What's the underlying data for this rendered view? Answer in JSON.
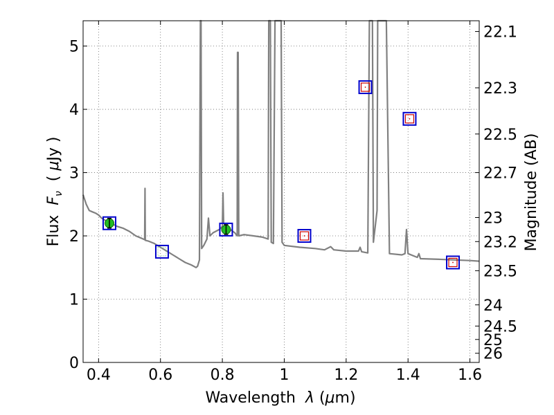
{
  "chart_data": {
    "type": "line",
    "xlabel": "Wavelength  λ (μm)",
    "ylabel_left": "Flux  F_ν  ( μJy )",
    "ylabel_right": "Magnitude (AB)",
    "xlim": [
      0.35,
      1.63
    ],
    "ylim": [
      0,
      5.4
    ],
    "x_ticks": [
      {
        "value": 0.4,
        "label": "0.4"
      },
      {
        "value": 0.6,
        "label": "0.6"
      },
      {
        "value": 0.8,
        "label": "0.8"
      },
      {
        "value": 1.0,
        "label": "1"
      },
      {
        "value": 1.2,
        "label": "1.2"
      },
      {
        "value": 1.4,
        "label": "1.4"
      },
      {
        "value": 1.6,
        "label": "1.6"
      }
    ],
    "y_ticks": [
      {
        "value": 0,
        "label": "0"
      },
      {
        "value": 1,
        "label": "1"
      },
      {
        "value": 2,
        "label": "2"
      },
      {
        "value": 3,
        "label": "3"
      },
      {
        "value": 4,
        "label": "4"
      },
      {
        "value": 5,
        "label": "5"
      }
    ],
    "mag_ticks": [
      {
        "flux": 5.23,
        "label": "22.1"
      },
      {
        "flux": 4.34,
        "label": "22.3"
      },
      {
        "flux": 3.61,
        "label": "22.5"
      },
      {
        "flux": 3.0,
        "label": "22.7"
      },
      {
        "flux": 2.29,
        "label": "23"
      },
      {
        "flux": 1.91,
        "label": "23.2"
      },
      {
        "flux": 1.45,
        "label": "23.5"
      },
      {
        "flux": 0.91,
        "label": "24"
      },
      {
        "flux": 0.575,
        "label": "24.5"
      },
      {
        "flux": 0.363,
        "label": "25"
      },
      {
        "flux": 0.145,
        "label": "26"
      }
    ],
    "grid": true,
    "colors": {
      "spectrum": "#808080",
      "box": "#0000cc",
      "model_marker": "#cc0000",
      "detection_fill": "#22bb22",
      "dotted_marker": "#8fcf8f",
      "grid": "#666666"
    },
    "spectrum": [
      [
        0.35,
        2.65
      ],
      [
        0.36,
        2.5
      ],
      [
        0.37,
        2.4
      ],
      [
        0.38,
        2.38
      ],
      [
        0.39,
        2.36
      ],
      [
        0.4,
        2.33
      ],
      [
        0.41,
        2.28
      ],
      [
        0.42,
        2.25
      ],
      [
        0.43,
        2.22
      ],
      [
        0.44,
        2.2
      ],
      [
        0.46,
        2.15
      ],
      [
        0.48,
        2.12
      ],
      [
        0.5,
        2.07
      ],
      [
        0.52,
        2.0
      ],
      [
        0.54,
        1.96
      ],
      [
        0.549,
        1.94
      ],
      [
        0.55,
        2.75
      ],
      [
        0.551,
        1.93
      ],
      [
        0.56,
        1.92
      ],
      [
        0.58,
        1.88
      ],
      [
        0.6,
        1.82
      ],
      [
        0.62,
        1.76
      ],
      [
        0.64,
        1.7
      ],
      [
        0.66,
        1.64
      ],
      [
        0.68,
        1.58
      ],
      [
        0.7,
        1.54
      ],
      [
        0.715,
        1.5
      ],
      [
        0.72,
        1.52
      ],
      [
        0.726,
        1.62
      ],
      [
        0.728,
        4.2
      ],
      [
        0.729,
        5.4
      ],
      [
        0.731,
        5.4
      ],
      [
        0.733,
        1.8
      ],
      [
        0.74,
        1.85
      ],
      [
        0.75,
        1.95
      ],
      [
        0.755,
        2.28
      ],
      [
        0.76,
        2.0
      ],
      [
        0.77,
        2.05
      ],
      [
        0.79,
        2.1
      ],
      [
        0.8,
        2.15
      ],
      [
        0.802,
        2.68
      ],
      [
        0.804,
        2.2
      ],
      [
        0.82,
        2.12
      ],
      [
        0.84,
        2.05
      ],
      [
        0.848,
        2.0
      ],
      [
        0.849,
        4.9
      ],
      [
        0.851,
        4.9
      ],
      [
        0.853,
        2.0
      ],
      [
        0.87,
        2.02
      ],
      [
        0.9,
        2.0
      ],
      [
        0.93,
        1.98
      ],
      [
        0.948,
        1.95
      ],
      [
        0.95,
        5.4
      ],
      [
        0.955,
        5.4
      ],
      [
        0.958,
        1.9
      ],
      [
        0.965,
        1.88
      ],
      [
        0.97,
        5.4
      ],
      [
        0.99,
        5.4
      ],
      [
        0.993,
        1.9
      ],
      [
        1.0,
        1.85
      ],
      [
        1.05,
        1.82
      ],
      [
        1.1,
        1.8
      ],
      [
        1.13,
        1.78
      ],
      [
        1.15,
        1.83
      ],
      [
        1.16,
        1.78
      ],
      [
        1.2,
        1.76
      ],
      [
        1.24,
        1.76
      ],
      [
        1.245,
        1.82
      ],
      [
        1.25,
        1.75
      ],
      [
        1.27,
        1.73
      ],
      [
        1.275,
        5.4
      ],
      [
        1.285,
        5.4
      ],
      [
        1.288,
        1.9
      ],
      [
        1.3,
        2.4
      ],
      [
        1.302,
        5.4
      ],
      [
        1.33,
        5.4
      ],
      [
        1.34,
        1.72
      ],
      [
        1.38,
        1.7
      ],
      [
        1.39,
        1.72
      ],
      [
        1.395,
        2.1
      ],
      [
        1.4,
        1.72
      ],
      [
        1.43,
        1.66
      ],
      [
        1.435,
        1.72
      ],
      [
        1.44,
        1.64
      ],
      [
        1.5,
        1.63
      ],
      [
        1.55,
        1.62
      ],
      [
        1.6,
        1.61
      ],
      [
        1.63,
        1.6
      ]
    ],
    "photometry": [
      {
        "x": 0.435,
        "y": 2.2,
        "marker": "detection"
      },
      {
        "x": 0.605,
        "y": 1.75,
        "marker": "dotted"
      },
      {
        "x": 0.812,
        "y": 2.1,
        "marker": "detection"
      },
      {
        "x": 1.065,
        "y": 2.0,
        "marker": "model"
      },
      {
        "x": 1.262,
        "y": 4.35,
        "marker": "model"
      },
      {
        "x": 1.405,
        "y": 3.85,
        "marker": "model"
      },
      {
        "x": 1.545,
        "y": 1.58,
        "marker": "model"
      }
    ]
  }
}
